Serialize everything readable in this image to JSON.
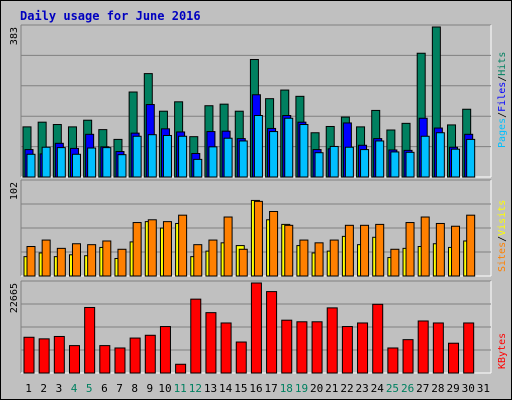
{
  "title": "Daily usage for June 2016",
  "colors": {
    "frame_bg": "#c0c0c0",
    "plot_bg": "#c0c0c0",
    "title": "#0000c0",
    "hits": "#008060",
    "files": "#0000ff",
    "pages": "#00c0ff",
    "visits": "#ffff00",
    "sites": "#ff8000",
    "kbytes": "#ff0000",
    "weekend_day": "#008060",
    "weekday_day": "#000000"
  },
  "chart_data": [
    {
      "type": "bar",
      "title": "Daily usage for June 2016",
      "ylabel_parts": [
        "Pages",
        "/",
        "Files",
        "/",
        "Hits"
      ],
      "ymax_label": "383",
      "ylim": [
        0,
        383
      ],
      "grid": true,
      "categories": [
        "1",
        "2",
        "3",
        "4",
        "5",
        "6",
        "7",
        "8",
        "9",
        "10",
        "11",
        "12",
        "13",
        "14",
        "15",
        "16",
        "17",
        "18",
        "19",
        "20",
        "21",
        "22",
        "23",
        "24",
        "25",
        "26",
        "27",
        "28",
        "29",
        "30",
        "31"
      ],
      "series": [
        {
          "name": "Hits",
          "values": [
            128,
            140,
            134,
            128,
            145,
            121,
            96,
            217,
            264,
            168,
            192,
            103,
            182,
            186,
            168,
            300,
            200,
            222,
            206,
            113,
            129,
            153,
            128,
            170,
            120,
            137,
            316,
            383,
            133,
            173,
            0
          ]
        },
        {
          "name": "Files",
          "values": [
            70,
            59,
            86,
            73,
            109,
            77,
            65,
            112,
            185,
            123,
            115,
            60,
            116,
            117,
            98,
            210,
            124,
            157,
            140,
            70,
            72,
            138,
            81,
            98,
            69,
            68,
            150,
            125,
            76,
            109,
            0
          ]
        },
        {
          "name": "Pages",
          "values": [
            58,
            76,
            75,
            58,
            74,
            75,
            57,
            104,
            108,
            106,
            104,
            45,
            77,
            99,
            92,
            157,
            116,
            150,
            134,
            62,
            78,
            76,
            70,
            92,
            64,
            63,
            104,
            113,
            71,
            96,
            0
          ]
        }
      ]
    },
    {
      "type": "bar",
      "ylabel_parts": [
        "Sites",
        "/",
        "Visits"
      ],
      "ymax_label": "102",
      "ylim": [
        0,
        102
      ],
      "grid": true,
      "categories": [
        "1",
        "2",
        "3",
        "4",
        "5",
        "6",
        "7",
        "8",
        "9",
        "10",
        "11",
        "12",
        "13",
        "14",
        "15",
        "16",
        "17",
        "18",
        "19",
        "20",
        "21",
        "22",
        "23",
        "24",
        "25",
        "26",
        "27",
        "28",
        "29",
        "30",
        "31"
      ],
      "series": [
        {
          "name": "Visits",
          "values": [
            21,
            25,
            21,
            23,
            22,
            31,
            19,
            37,
            59,
            52,
            57,
            21,
            27,
            36,
            33,
            82,
            61,
            56,
            33,
            25,
            27,
            43,
            34,
            42,
            20,
            30,
            32,
            35,
            31,
            38,
            0
          ]
        },
        {
          "name": "Sites",
          "values": [
            32,
            39,
            30,
            35,
            34,
            38,
            29,
            58,
            61,
            59,
            66,
            34,
            39,
            64,
            29,
            81,
            70,
            55,
            39,
            36,
            39,
            55,
            55,
            56,
            29,
            58,
            64,
            57,
            54,
            66,
            0
          ]
        }
      ]
    },
    {
      "type": "bar",
      "ylabel_parts": [
        "KBytes"
      ],
      "ymax_label": "22665",
      "ylim": [
        0,
        22665
      ],
      "grid": true,
      "categories": [
        "1",
        "2",
        "3",
        "4",
        "5",
        "6",
        "7",
        "8",
        "9",
        "10",
        "11",
        "12",
        "13",
        "14",
        "15",
        "16",
        "17",
        "18",
        "19",
        "20",
        "21",
        "22",
        "23",
        "24",
        "25",
        "26",
        "27",
        "28",
        "29",
        "30",
        "31"
      ],
      "series": [
        {
          "name": "KBytes",
          "values": [
            9000,
            8600,
            9200,
            6900,
            16500,
            6900,
            6300,
            8800,
            9500,
            11700,
            2200,
            18600,
            15200,
            12600,
            7800,
            22665,
            20500,
            13300,
            12900,
            12900,
            16400,
            11700,
            12600,
            17300,
            6300,
            8400,
            13100,
            12600,
            7500,
            12600,
            0
          ]
        }
      ]
    }
  ],
  "x_axis": {
    "days": [
      "1",
      "2",
      "3",
      "4",
      "5",
      "6",
      "7",
      "8",
      "9",
      "10",
      "11",
      "12",
      "13",
      "14",
      "15",
      "16",
      "17",
      "18",
      "19",
      "20",
      "21",
      "22",
      "23",
      "24",
      "25",
      "26",
      "27",
      "28",
      "29",
      "30",
      "31"
    ],
    "weekend_days": [
      "4",
      "5",
      "11",
      "12",
      "18",
      "19",
      "25",
      "26"
    ]
  }
}
